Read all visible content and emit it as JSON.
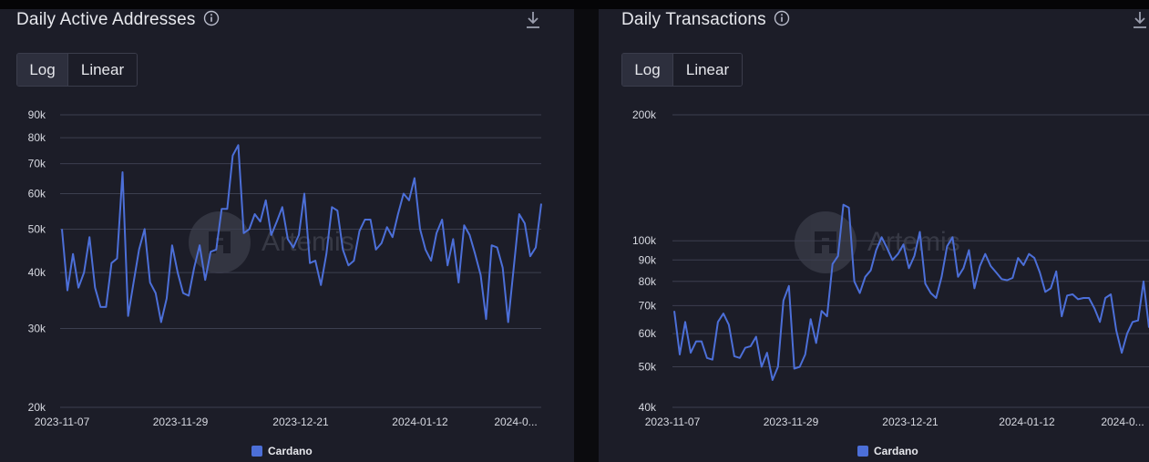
{
  "series_color": "#4c6fd8",
  "watermark": {
    "text": "Artemis"
  },
  "charts": [
    {
      "title": "Daily Active Addresses",
      "toggle": {
        "log": "Log",
        "linear": "Linear",
        "selected": "Log"
      },
      "legend": "Cardano",
      "chart_data": {
        "type": "line",
        "scale": "log",
        "ylim": [
          20000,
          90000
        ],
        "yticks": [
          20000,
          30000,
          40000,
          50000,
          60000,
          70000,
          80000,
          90000
        ],
        "ytick_labels": [
          "20k",
          "30k",
          "40k",
          "50k",
          "60k",
          "70k",
          "80k",
          "90k"
        ],
        "xtick_labels": [
          "2023-11-07",
          "2023-11-29",
          "2023-12-21",
          "2024-01-12",
          "2024-0..."
        ],
        "series": [
          {
            "name": "Cardano",
            "x": [
              "2023-11-07",
              "2023-11-08",
              "2023-11-09",
              "2023-11-10",
              "2023-11-11",
              "2023-11-12",
              "2023-11-13",
              "2023-11-14",
              "2023-11-15",
              "2023-11-16",
              "2023-11-17",
              "2023-11-18",
              "2023-11-19",
              "2023-11-20",
              "2023-11-21",
              "2023-11-22",
              "2023-11-23",
              "2023-11-24",
              "2023-11-25",
              "2023-11-26",
              "2023-11-27",
              "2023-11-28",
              "2023-11-29",
              "2023-11-30",
              "2023-12-01",
              "2023-12-02",
              "2023-12-03",
              "2023-12-04",
              "2023-12-05",
              "2023-12-06",
              "2023-12-07",
              "2023-12-08",
              "2023-12-09",
              "2023-12-10",
              "2023-12-11",
              "2023-12-12",
              "2023-12-13",
              "2023-12-14",
              "2023-12-15",
              "2023-12-16",
              "2023-12-17",
              "2023-12-18",
              "2023-12-19",
              "2023-12-20",
              "2023-12-21",
              "2023-12-22",
              "2023-12-23",
              "2023-12-24",
              "2023-12-25",
              "2023-12-26",
              "2023-12-27",
              "2023-12-28",
              "2023-12-29",
              "2023-12-30",
              "2023-12-31",
              "2024-01-01",
              "2024-01-02",
              "2024-01-03",
              "2024-01-04",
              "2024-01-05",
              "2024-01-06",
              "2024-01-07",
              "2024-01-08",
              "2024-01-09",
              "2024-01-10",
              "2024-01-11",
              "2024-01-12",
              "2024-01-13",
              "2024-01-14",
              "2024-01-15",
              "2024-01-16",
              "2024-01-17",
              "2024-01-18",
              "2024-01-19",
              "2024-01-20",
              "2024-01-21",
              "2024-01-22",
              "2024-01-23",
              "2024-01-24",
              "2024-01-25",
              "2024-01-26",
              "2024-01-27",
              "2024-01-28",
              "2024-01-29",
              "2024-01-30",
              "2024-01-31",
              "2024-02-01",
              "2024-02-02"
            ],
            "values": [
              50000,
              36500,
              44000,
              37000,
              40000,
              48000,
              37000,
              33500,
              33500,
              42000,
              43000,
              67000,
              32000,
              38000,
              45000,
              50000,
              38000,
              36000,
              31000,
              35000,
              46000,
              40000,
              36000,
              35500,
              41000,
              46000,
              38500,
              44500,
              45000,
              55500,
              55500,
              73000,
              77000,
              49000,
              50000,
              54000,
              52000,
              58000,
              48500,
              52000,
              56000,
              47500,
              45500,
              48500,
              60000,
              42000,
              42500,
              37500,
              44000,
              56000,
              55000,
              45000,
              41500,
              42500,
              49500,
              52500,
              52500,
              45000,
              46500,
              50500,
              48000,
              54000,
              60000,
              58000,
              65000,
              50000,
              45000,
              42500,
              49000,
              52500,
              41500,
              47500,
              38000,
              51000,
              48500,
              44000,
              39500,
              31500,
              46000,
              45500,
              41000,
              31000,
              41000,
              54000,
              51500,
              43500,
              45500,
              57000
            ]
          }
        ]
      }
    },
    {
      "title": "Daily Transactions",
      "toggle": {
        "log": "Log",
        "linear": "Linear",
        "selected": "Log"
      },
      "legend": "Cardano",
      "chart_data": {
        "type": "line",
        "scale": "log",
        "ylim": [
          40000,
          200000
        ],
        "yticks": [
          40000,
          50000,
          60000,
          70000,
          80000,
          90000,
          100000,
          200000
        ],
        "ytick_labels": [
          "40k",
          "50k",
          "60k",
          "70k",
          "80k",
          "90k",
          "100k",
          "200k"
        ],
        "xtick_labels": [
          "2023-11-07",
          "2023-11-29",
          "2023-12-21",
          "2024-01-12",
          "2024-0..."
        ],
        "series": [
          {
            "name": "Cardano",
            "x": [
              "2023-11-07",
              "2023-11-08",
              "2023-11-09",
              "2023-11-10",
              "2023-11-11",
              "2023-11-12",
              "2023-11-13",
              "2023-11-14",
              "2023-11-15",
              "2023-11-16",
              "2023-11-17",
              "2023-11-18",
              "2023-11-19",
              "2023-11-20",
              "2023-11-21",
              "2023-11-22",
              "2023-11-23",
              "2023-11-24",
              "2023-11-25",
              "2023-11-26",
              "2023-11-27",
              "2023-11-28",
              "2023-11-29",
              "2023-11-30",
              "2023-12-01",
              "2023-12-02",
              "2023-12-03",
              "2023-12-04",
              "2023-12-05",
              "2023-12-06",
              "2023-12-07",
              "2023-12-08",
              "2023-12-09",
              "2023-12-10",
              "2023-12-11",
              "2023-12-12",
              "2023-12-13",
              "2023-12-14",
              "2023-12-15",
              "2023-12-16",
              "2023-12-17",
              "2023-12-18",
              "2023-12-19",
              "2023-12-20",
              "2023-12-21",
              "2023-12-22",
              "2023-12-23",
              "2023-12-24",
              "2023-12-25",
              "2023-12-26",
              "2023-12-27",
              "2023-12-28",
              "2023-12-29",
              "2023-12-30",
              "2023-12-31",
              "2024-01-01",
              "2024-01-02",
              "2024-01-03",
              "2024-01-04",
              "2024-01-05",
              "2024-01-06",
              "2024-01-07",
              "2024-01-08",
              "2024-01-09",
              "2024-01-10",
              "2024-01-11",
              "2024-01-12",
              "2024-01-13",
              "2024-01-14",
              "2024-01-15",
              "2024-01-16",
              "2024-01-17",
              "2024-01-18",
              "2024-01-19",
              "2024-01-20",
              "2024-01-21",
              "2024-01-22",
              "2024-01-23",
              "2024-01-24",
              "2024-01-25",
              "2024-01-26",
              "2024-01-27",
              "2024-01-28",
              "2024-01-29",
              "2024-01-30",
              "2024-01-31",
              "2024-02-01",
              "2024-02-02"
            ],
            "values": [
              68000,
              53500,
              64000,
              54000,
              57500,
              57500,
              52500,
              52000,
              64000,
              67000,
              63000,
              53000,
              52500,
              55500,
              56000,
              59000,
              50000,
              54000,
              46500,
              50000,
              72000,
              78000,
              49500,
              50000,
              53500,
              65000,
              57000,
              68000,
              66000,
              88000,
              92000,
              122000,
              120000,
              80000,
              75000,
              82000,
              85000,
              95000,
              102000,
              96000,
              90000,
              93000,
              98000,
              86000,
              92000,
              105000,
              79000,
              75000,
              73000,
              82000,
              97000,
              102000,
              82000,
              86000,
              95000,
              77000,
              87000,
              93000,
              87000,
              84000,
              81000,
              80500,
              81500,
              91000,
              87500,
              93000,
              91000,
              84000,
              75500,
              77000,
              84500,
              66000,
              74000,
              74500,
              72500,
              73000,
              73000,
              69000,
              64000,
              73000,
              74500,
              61000,
              54000,
              60000,
              64000,
              64500,
              80000,
              62000
            ]
          }
        ]
      }
    }
  ]
}
